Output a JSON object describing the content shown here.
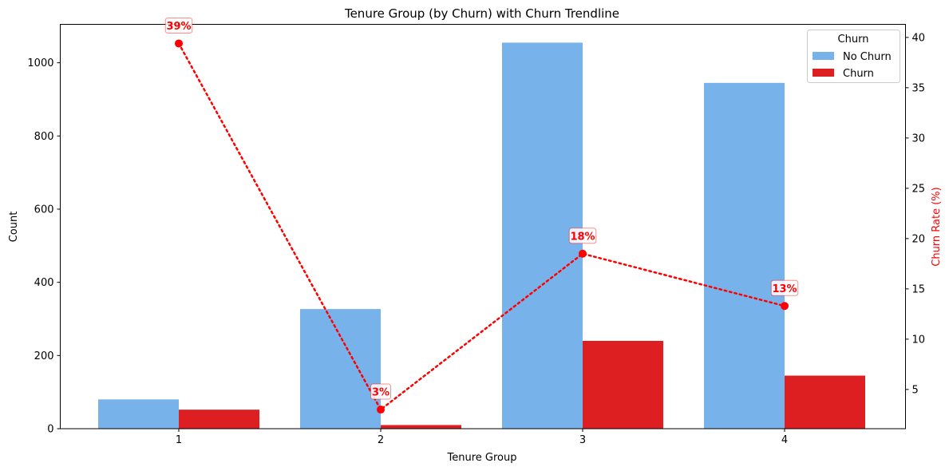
{
  "chart_data": {
    "type": "bar",
    "title": "Tenure Group (by Churn) with Churn Trendline",
    "xlabel": "Tenure Group",
    "ylabel": "Count",
    "y2label": "Churn Rate (%)",
    "categories": [
      "1",
      "2",
      "3",
      "4"
    ],
    "ylim": [
      0,
      1105
    ],
    "y2lim": [
      1.1,
      41.3
    ],
    "yticks": [
      "0",
      "200",
      "400",
      "600",
      "800",
      "1000"
    ],
    "y2ticks": [
      "5",
      "10",
      "15",
      "20",
      "25",
      "30",
      "35",
      "40"
    ],
    "series": [
      {
        "name": "No Churn",
        "type": "bar",
        "color": "#78b2ea",
        "values": [
          80,
          327,
          1055,
          945
        ]
      },
      {
        "name": "Churn",
        "type": "bar",
        "color": "#de1f21",
        "values": [
          52,
          10,
          240,
          145
        ]
      },
      {
        "type": "line",
        "axis": "right",
        "style": "dotted",
        "color": "#ff0000",
        "values": [
          39.4,
          3.0,
          18.5,
          13.3
        ],
        "labels": [
          "39%",
          "3%",
          "18%",
          "13%"
        ]
      }
    ],
    "legend": {
      "title": "Churn",
      "placement": "top-right",
      "entries": [
        "No Churn",
        "Churn"
      ]
    },
    "grid": false
  }
}
